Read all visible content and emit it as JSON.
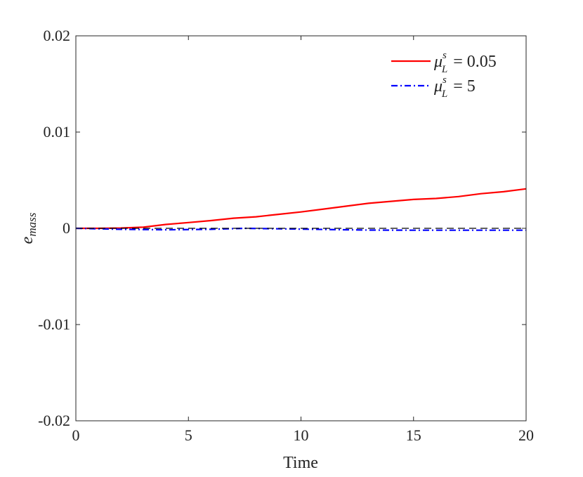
{
  "chart_data": {
    "type": "line",
    "title": "",
    "xlabel": "Time",
    "ylabel_base": "e",
    "ylabel_sub": "mass",
    "xlim": [
      0,
      20
    ],
    "ylim": [
      -0.02,
      0.02
    ],
    "xticks": [
      0,
      5,
      10,
      15,
      20
    ],
    "xtick_labels": [
      "0",
      "5",
      "10",
      "15",
      "20"
    ],
    "yticks": [
      -0.02,
      -0.01,
      0,
      0.01,
      0.02
    ],
    "ytick_labels": [
      "-0.02",
      "-0.01",
      "0",
      "0.01",
      "0.02"
    ],
    "grid": false,
    "legend_position": "top-right",
    "series": [
      {
        "name": "μ_L^s = 0.05",
        "legend_main": "μ",
        "legend_sup": "s",
        "legend_sub": "L",
        "legend_value": "= 0.05",
        "color": "#ff0000",
        "style": "solid",
        "x": [
          0,
          1,
          2,
          3,
          4,
          5,
          6,
          7,
          8,
          9,
          10,
          11,
          12,
          13,
          14,
          15,
          16,
          17,
          18,
          19,
          20
        ],
        "y": [
          0,
          0,
          3e-05,
          0.00012,
          0.0004,
          0.0006,
          0.0008,
          0.00105,
          0.0012,
          0.00145,
          0.0017,
          0.002,
          0.0023,
          0.0026,
          0.0028,
          0.003,
          0.0031,
          0.0033,
          0.0036,
          0.0038,
          0.0041
        ]
      },
      {
        "name": "μ_L^s = 5",
        "legend_main": "μ",
        "legend_sup": "s",
        "legend_sub": "L",
        "legend_value": "= 5",
        "color": "#0000ff",
        "style": "dashdot",
        "x": [
          0,
          2,
          4,
          6,
          7.5,
          9,
          11,
          13,
          15,
          17,
          20
        ],
        "y": [
          0,
          -0.0001,
          -0.00015,
          -0.0001,
          0,
          -5e-05,
          -0.00012,
          -0.00018,
          -0.0002,
          -0.0002,
          -0.0002
        ]
      },
      {
        "name": "reference",
        "color": "#000000",
        "style": "dashed",
        "legend": false,
        "x": [
          0,
          20
        ],
        "y": [
          0,
          0
        ]
      }
    ]
  }
}
